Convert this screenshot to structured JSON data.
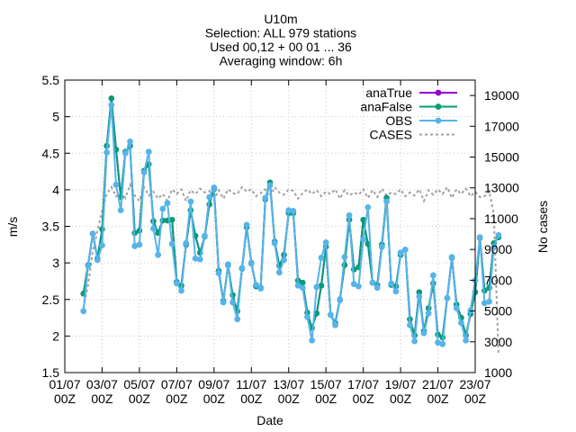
{
  "chart_data": {
    "type": "line",
    "title_lines": [
      "U10m",
      "Selection: ALL     979 stations",
      "Used 00,12 + 00 01 ... 36",
      "Averaging window:  6h"
    ],
    "xlabel": "Date",
    "ylabel": "m/s",
    "y2label": "No cases",
    "ylim": [
      1.5,
      5.5
    ],
    "y2lim": [
      1000,
      20000
    ],
    "xlim": [
      "2021-07-01 00Z",
      "2021-07-23 00Z"
    ],
    "legend_position": "top-right",
    "grid": true,
    "y_ticks": [
      "5.5",
      "5",
      "4.5",
      "4",
      "3.5",
      "3",
      "2.5",
      "2",
      "1.5"
    ],
    "y2_ticks": [
      "19000",
      "17000",
      "15000",
      "13000",
      "11000",
      "9000",
      "7000",
      "5000",
      "3000",
      "1000"
    ],
    "x_ticks": [
      [
        "01/07",
        "00Z"
      ],
      [
        "03/07",
        "00Z"
      ],
      [
        "05/07",
        "00Z"
      ],
      [
        "07/07",
        "00Z"
      ],
      [
        "09/07",
        "00Z"
      ],
      [
        "11/07",
        "00Z"
      ],
      [
        "13/07",
        "00Z"
      ],
      [
        "15/07",
        "00Z"
      ],
      [
        "17/07",
        "00Z"
      ],
      [
        "19/07",
        "00Z"
      ],
      [
        "21/07",
        "00Z"
      ],
      [
        "23/07",
        "00Z"
      ]
    ],
    "x_step_hours": 6,
    "x_start": "2021-07-02 00Z",
    "series": [
      {
        "name": "anaTrue",
        "color": "#9400d3",
        "values": [
          2.58,
          2.97,
          3.4,
          3.06,
          3.46,
          4.6,
          5.25,
          4.55,
          3.9,
          4.52,
          4.6,
          3.41,
          3.44,
          4.26,
          4.35,
          3.57,
          3.41,
          3.58,
          3.58,
          3.59,
          2.74,
          2.69,
          3.25,
          3.72,
          3.37,
          3.14,
          3.36,
          3.8,
          4.01,
          2.89,
          2.48,
          2.97,
          2.56,
          2.34,
          2.92,
          3.49,
          3.0,
          2.68,
          2.66,
          3.87,
          4.1,
          3.29,
          2.96,
          3.11,
          3.68,
          3.68,
          2.76,
          2.73,
          2.32,
          2.11,
          2.31,
          2.69,
          3.22,
          2.29,
          2.18,
          2.5,
          2.97,
          3.59,
          2.91,
          2.94,
          3.59,
          3.26,
          2.73,
          2.7,
          3.25,
          3.89,
          2.7,
          2.68,
          3.11,
          3.18,
          2.23,
          2.01,
          2.6,
          2.07,
          2.38,
          2.72,
          2.02,
          1.98,
          2.52,
          3.07,
          2.43,
          2.25,
          2.01,
          2.3,
          2.6,
          3.34,
          2.62,
          2.66,
          3.27,
          3.35
        ]
      },
      {
        "name": "anaFalse",
        "color": "#009e73",
        "values": [
          2.58,
          2.97,
          3.4,
          3.06,
          3.46,
          4.6,
          5.25,
          4.55,
          3.9,
          4.52,
          4.6,
          3.41,
          3.44,
          4.26,
          4.35,
          3.57,
          3.41,
          3.58,
          3.58,
          3.59,
          2.74,
          2.69,
          3.25,
          3.72,
          3.37,
          3.14,
          3.36,
          3.8,
          4.01,
          2.89,
          2.48,
          2.97,
          2.56,
          2.34,
          2.92,
          3.49,
          3.0,
          2.68,
          2.66,
          3.87,
          4.1,
          3.29,
          2.96,
          3.11,
          3.68,
          3.68,
          2.76,
          2.73,
          2.32,
          2.11,
          2.31,
          2.69,
          3.22,
          2.29,
          2.18,
          2.5,
          2.97,
          3.59,
          2.91,
          2.94,
          3.59,
          3.26,
          2.73,
          2.7,
          3.25,
          3.89,
          2.7,
          2.68,
          3.11,
          3.18,
          2.23,
          2.01,
          2.6,
          2.07,
          2.38,
          2.72,
          2.02,
          1.98,
          2.52,
          3.07,
          2.43,
          2.25,
          2.01,
          2.3,
          2.6,
          3.34,
          2.62,
          2.66,
          3.27,
          3.35
        ]
      },
      {
        "name": "OBS",
        "color": "#56b4e9",
        "values": [
          2.34,
          2.96,
          3.4,
          3.04,
          3.24,
          4.51,
          5.16,
          4.07,
          3.72,
          4.5,
          4.66,
          3.23,
          3.25,
          4.24,
          4.52,
          3.47,
          3.11,
          3.74,
          3.82,
          3.26,
          2.72,
          2.62,
          3.27,
          3.84,
          3.06,
          3.05,
          3.37,
          3.9,
          4.03,
          2.86,
          2.46,
          2.98,
          2.46,
          2.23,
          2.93,
          3.52,
          2.99,
          2.7,
          2.65,
          3.89,
          4.06,
          3.27,
          2.87,
          3.04,
          3.72,
          3.71,
          2.69,
          2.66,
          2.26,
          1.94,
          2.67,
          3.07,
          3.28,
          2.29,
          2.15,
          2.49,
          3.08,
          3.65,
          2.71,
          2.68,
          3.32,
          3.76,
          2.73,
          2.66,
          3.22,
          3.84,
          2.72,
          2.61,
          3.14,
          3.18,
          2.15,
          1.93,
          2.54,
          2.04,
          2.31,
          2.83,
          1.91,
          1.89,
          2.52,
          3.08,
          2.38,
          2.18,
          1.94,
          2.35,
          2.76,
          3.35,
          2.45,
          2.47,
          3.22,
          3.38
        ]
      },
      {
        "name": "CASES",
        "color": "#a0a0a0",
        "axis": "y2",
        "values": [
          5200,
          6700,
          8900,
          10200,
          11500,
          12600,
          13050,
          12450,
          12700,
          12350,
          13200,
          12500,
          12150,
          13050,
          12500,
          12750,
          12300,
          12600,
          12150,
          12900,
          12600,
          12900,
          12150,
          12850,
          12600,
          12950,
          12700,
          12800,
          12200,
          12850,
          12300,
          12900,
          12650,
          12600,
          13050,
          12750,
          12900,
          12450,
          12650,
          12900,
          12400,
          13050,
          12700,
          12550,
          12900,
          12800,
          12300,
          12650,
          12900,
          12600,
          12850,
          12450,
          12750,
          12600,
          12900,
          12300,
          12850,
          12500,
          12700,
          12550,
          12900,
          12350,
          12850,
          12400,
          12950,
          12500,
          12700,
          12600,
          12900,
          12450,
          12700,
          12500,
          12900,
          12150,
          12850,
          12550,
          12900,
          12600,
          13050,
          12350,
          12900,
          12600,
          12950,
          12450,
          12750,
          12400,
          12450,
          12800,
          11300,
          2200
        ]
      }
    ]
  }
}
